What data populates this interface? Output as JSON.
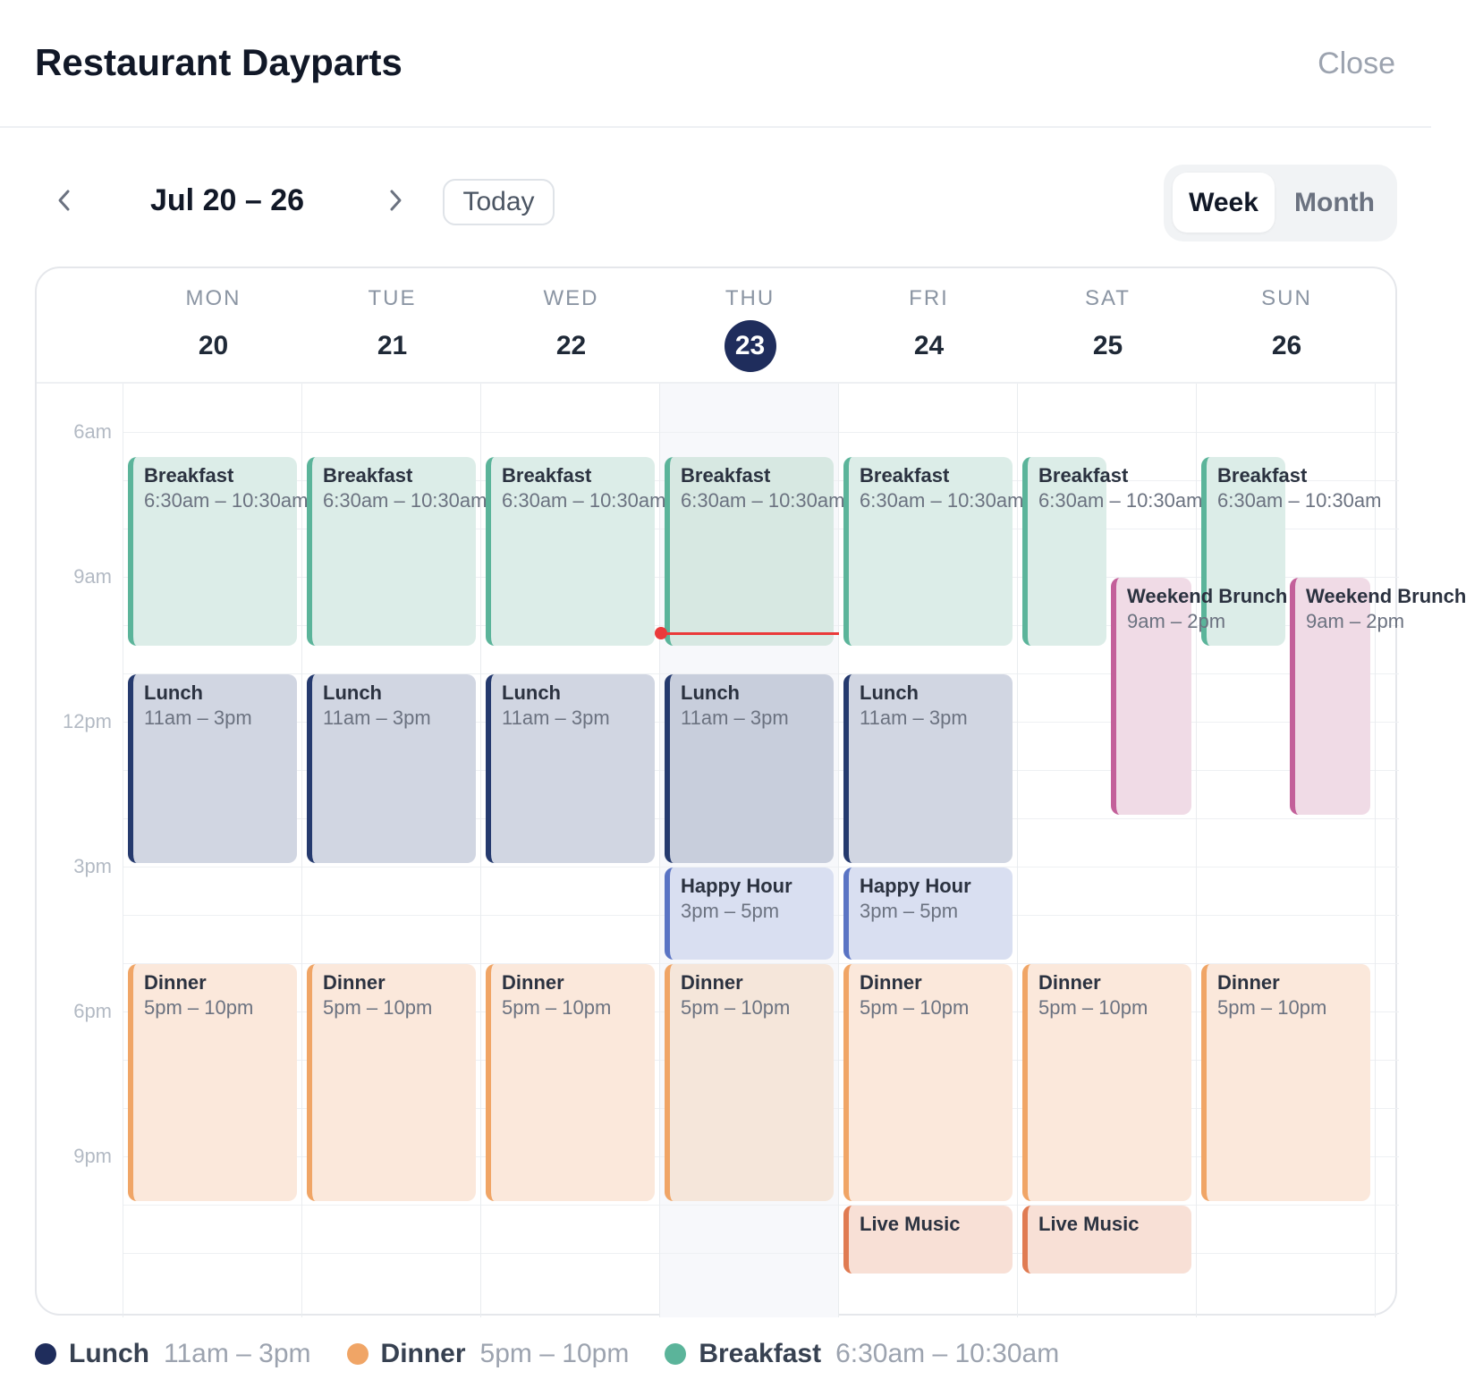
{
  "header": {
    "title": "Restaurant Dayparts",
    "close_label": "Close"
  },
  "toolbar": {
    "range": "Jul 20 – 26",
    "today_label": "Today",
    "view_week": "Week",
    "view_month": "Month",
    "active_view": "Week"
  },
  "days": [
    {
      "dow": "MON",
      "num": "20"
    },
    {
      "dow": "TUE",
      "num": "21"
    },
    {
      "dow": "WED",
      "num": "22"
    },
    {
      "dow": "THU",
      "num": "23",
      "today": true
    },
    {
      "dow": "FRI",
      "num": "24"
    },
    {
      "dow": "SAT",
      "num": "25"
    },
    {
      "dow": "SUN",
      "num": "26"
    }
  ],
  "time_labels": [
    "6am",
    "9am",
    "12pm",
    "3pm",
    "6pm",
    "9pm"
  ],
  "events": [
    {
      "day": 0,
      "type": "breakfast",
      "title": "Breakfast",
      "time": "6:30am – 10:30am"
    },
    {
      "day": 1,
      "type": "breakfast",
      "title": "Breakfast",
      "time": "6:30am – 10:30am"
    },
    {
      "day": 2,
      "type": "breakfast",
      "title": "Breakfast",
      "time": "6:30am – 10:30am"
    },
    {
      "day": 3,
      "type": "breakfast",
      "title": "Breakfast",
      "time": "6:30am – 10:30am"
    },
    {
      "day": 4,
      "type": "breakfast",
      "title": "Breakfast",
      "time": "6:30am – 10:30am"
    },
    {
      "day": 5,
      "type": "breakfast",
      "title": "Breakfast",
      "time": "6:30am – 10:30am"
    },
    {
      "day": 6,
      "type": "breakfast",
      "title": "Breakfast",
      "time": "6:30am – 10:30am"
    },
    {
      "day": 5,
      "type": "weekend",
      "title": "Weekend Brunch",
      "time": "9am – 2pm"
    },
    {
      "day": 6,
      "type": "weekend",
      "title": "Weekend Brunch",
      "time": "9am – 2pm"
    },
    {
      "day": 0,
      "type": "lunch",
      "title": "Lunch",
      "time": "11am – 3pm"
    },
    {
      "day": 1,
      "type": "lunch",
      "title": "Lunch",
      "time": "11am – 3pm"
    },
    {
      "day": 2,
      "type": "lunch",
      "title": "Lunch",
      "time": "11am – 3pm"
    },
    {
      "day": 3,
      "type": "lunch",
      "title": "Lunch",
      "time": "11am – 3pm"
    },
    {
      "day": 4,
      "type": "lunch",
      "title": "Lunch",
      "time": "11am – 3pm"
    },
    {
      "day": 3,
      "type": "happy",
      "title": "Happy Hour",
      "time": "3pm – 5pm"
    },
    {
      "day": 4,
      "type": "happy",
      "title": "Happy Hour",
      "time": "3pm – 5pm"
    },
    {
      "day": 0,
      "type": "dinner",
      "title": "Dinner",
      "time": "5pm – 10pm"
    },
    {
      "day": 1,
      "type": "dinner",
      "title": "Dinner",
      "time": "5pm – 10pm"
    },
    {
      "day": 2,
      "type": "dinner",
      "title": "Dinner",
      "time": "5pm – 10pm"
    },
    {
      "day": 3,
      "type": "dinner",
      "title": "Dinner",
      "time": "5pm – 10pm"
    },
    {
      "day": 4,
      "type": "dinner",
      "title": "Dinner",
      "time": "5pm – 10pm"
    },
    {
      "day": 5,
      "type": "dinner",
      "title": "Dinner",
      "time": "5pm – 10pm"
    },
    {
      "day": 6,
      "type": "dinner",
      "title": "Dinner",
      "time": "5pm – 10pm"
    },
    {
      "day": 4,
      "type": "live",
      "title": "Live Music",
      "time": ""
    },
    {
      "day": 5,
      "type": "live",
      "title": "Live Music",
      "time": ""
    }
  ],
  "legend": [
    {
      "name": "Lunch",
      "time": "11am – 3pm",
      "color": "#1f2d5c"
    },
    {
      "name": "Dinner",
      "time": "5pm – 10pm",
      "color": "#f0a566"
    },
    {
      "name": "Breakfast",
      "time": "6:30am – 10:30am",
      "color": "#5bb49a"
    }
  ],
  "colors": {
    "today": "#1f2d5c",
    "now_line": "#ea3a3a"
  }
}
